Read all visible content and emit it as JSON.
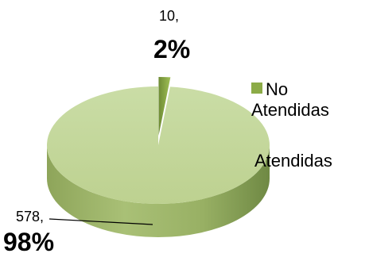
{
  "chart_data": {
    "type": "pie",
    "title": "",
    "style": "3d",
    "slices": [
      {
        "name": "No Atendidas",
        "value": 10,
        "percent": "2%",
        "count_label": "10,",
        "color": "#8cab47"
      },
      {
        "name": "Atendidas",
        "value": 578,
        "percent": "98%",
        "count_label": "578,",
        "color": "#c3d69b"
      }
    ],
    "legend": {
      "placement": "right",
      "items": [
        {
          "line1": "No",
          "line2": "Atendidas",
          "color": "#8cab47"
        },
        {
          "line1": "Atendidas",
          "color": "#c3d69b"
        }
      ]
    }
  }
}
